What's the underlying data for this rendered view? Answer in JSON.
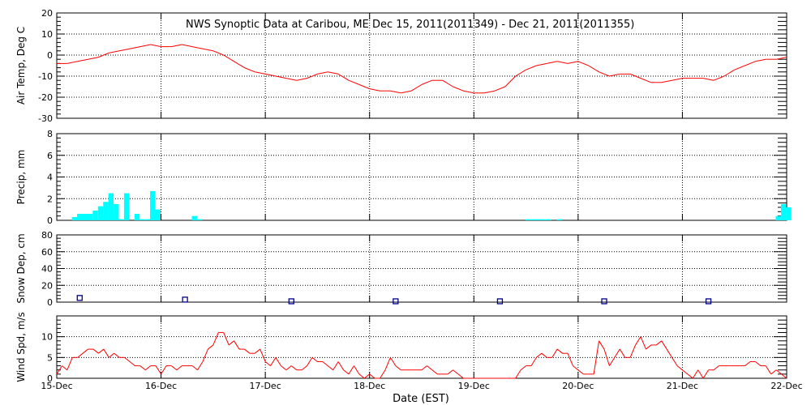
{
  "title": "NWS Synoptic Data at Caribou, ME   Dec 15, 2011(2011349) - Dec 21, 2011(2011355)",
  "x_axis": {
    "label": "Date (EST)",
    "ticks": [
      "15-Dec",
      "16-Dec",
      "17-Dec",
      "18-Dec",
      "19-Dec",
      "20-Dec",
      "21-Dec",
      "22-Dec"
    ]
  },
  "colors": {
    "line": "#ff0000",
    "precip": "#00ffff",
    "snow": "#00008b",
    "axis": "#000000"
  },
  "chart_data": [
    {
      "type": "line",
      "ylabel": "Air Temp, Deg C",
      "ylim": [
        -30,
        20
      ],
      "yticks": [
        -30,
        -20,
        -10,
        0,
        10,
        20
      ],
      "x_unit": "days since 15-Dec 00:00",
      "grid": true,
      "series": [
        {
          "x": [
            0,
            0.1,
            0.2,
            0.3,
            0.4,
            0.5,
            0.6,
            0.7,
            0.8,
            0.9,
            1.0,
            1.1,
            1.2,
            1.3,
            1.4,
            1.5,
            1.6,
            1.7,
            1.8,
            1.9,
            2.0,
            2.1,
            2.2,
            2.3,
            2.4,
            2.5,
            2.6,
            2.7,
            2.8,
            2.9,
            3.0,
            3.1,
            3.2,
            3.3,
            3.4,
            3.5,
            3.6,
            3.7,
            3.8,
            3.9,
            4.0,
            4.1,
            4.2,
            4.3,
            4.4,
            4.5,
            4.6,
            4.7,
            4.8,
            4.9,
            5.0,
            5.1,
            5.2,
            5.3,
            5.4,
            5.5,
            5.6,
            5.7,
            5.8,
            5.9,
            6.0,
            6.1,
            6.2,
            6.3,
            6.4,
            6.5,
            6.6,
            6.7,
            6.8,
            6.9,
            7.0
          ],
          "values": [
            -4,
            -4,
            -3,
            -2,
            -1,
            1,
            2,
            3,
            4,
            5,
            4,
            4,
            5,
            4,
            3,
            2,
            0,
            -3,
            -6,
            -8,
            -9,
            -10,
            -11,
            -12,
            -11,
            -9,
            -8,
            -9,
            -12,
            -14,
            -16,
            -17,
            -17,
            -18,
            -17,
            -14,
            -12,
            -12,
            -15,
            -17,
            -18,
            -18,
            -17,
            -15,
            -10,
            -7,
            -5,
            -4,
            -3,
            -4,
            -3,
            -5,
            -8,
            -10,
            -9,
            -9,
            -11,
            -13,
            -13,
            -12,
            -11,
            -11,
            -11,
            -12,
            -10,
            -7,
            -5,
            -3,
            -2,
            -2,
            -1
          ]
        }
      ]
    },
    {
      "type": "bar",
      "ylabel": "Precip, mm",
      "ylim": [
        0,
        8
      ],
      "yticks": [
        0,
        2,
        4,
        6,
        8
      ],
      "x_unit": "days since 15-Dec 00:00",
      "grid": true,
      "series": [
        {
          "x": [
            0.17,
            0.22,
            0.27,
            0.32,
            0.37,
            0.42,
            0.47,
            0.52,
            0.57,
            0.62,
            0.67,
            0.77,
            0.82,
            0.87,
            0.92,
            0.97,
            1.32,
            1.37,
            4.52,
            4.57,
            4.62,
            4.67,
            4.72,
            4.82,
            6.92,
            6.97,
            7.02
          ],
          "values": [
            0.3,
            0.6,
            0.6,
            0.6,
            0.9,
            1.3,
            1.7,
            2.5,
            1.5,
            0.1,
            2.5,
            0.6,
            0.1,
            0.1,
            2.7,
            1.0,
            0.4,
            0.1,
            0.1,
            0.1,
            0.1,
            0.1,
            0.1,
            0.1,
            0.4,
            1.5,
            1.2
          ]
        }
      ]
    },
    {
      "type": "scatter",
      "ylabel": "Snow Dep, cm",
      "ylim": [
        0,
        80
      ],
      "yticks": [
        0,
        20,
        40,
        60,
        80
      ],
      "x_unit": "days since 15-Dec 00:00",
      "grid": true,
      "series": [
        {
          "x": [
            0.22,
            1.23,
            2.25,
            3.25,
            4.25,
            5.25,
            6.25
          ],
          "values": [
            5,
            3,
            1,
            1,
            1,
            1,
            1
          ]
        }
      ]
    },
    {
      "type": "line",
      "ylabel": "Wind Spd, m/s",
      "ylim": [
        0,
        15
      ],
      "yticks": [
        0,
        5,
        10
      ],
      "x_unit": "days since 15-Dec 00:00",
      "grid": true,
      "series": [
        {
          "x": [
            0,
            0.05,
            0.1,
            0.15,
            0.2,
            0.25,
            0.3,
            0.35,
            0.4,
            0.45,
            0.5,
            0.55,
            0.6,
            0.65,
            0.7,
            0.75,
            0.8,
            0.85,
            0.9,
            0.95,
            1.0,
            1.05,
            1.1,
            1.15,
            1.2,
            1.25,
            1.3,
            1.35,
            1.4,
            1.45,
            1.5,
            1.55,
            1.6,
            1.65,
            1.7,
            1.75,
            1.8,
            1.85,
            1.9,
            1.95,
            2.0,
            2.05,
            2.1,
            2.15,
            2.2,
            2.25,
            2.3,
            2.35,
            2.4,
            2.45,
            2.5,
            2.55,
            2.6,
            2.65,
            2.7,
            2.75,
            2.8,
            2.85,
            2.9,
            2.95,
            3.0,
            3.05,
            3.1,
            3.15,
            3.2,
            3.25,
            3.3,
            3.35,
            3.4,
            3.45,
            3.5,
            3.55,
            3.6,
            3.65,
            3.7,
            3.75,
            3.8,
            3.85,
            3.9,
            3.95,
            4.0,
            4.05,
            4.1,
            4.15,
            4.2,
            4.25,
            4.3,
            4.35,
            4.4,
            4.45,
            4.5,
            4.55,
            4.6,
            4.65,
            4.7,
            4.75,
            4.8,
            4.85,
            4.9,
            4.95,
            5.0,
            5.05,
            5.1,
            5.15,
            5.2,
            5.25,
            5.3,
            5.35,
            5.4,
            5.45,
            5.5,
            5.55,
            5.6,
            5.65,
            5.7,
            5.75,
            5.8,
            5.85,
            5.9,
            5.95,
            6.0,
            6.05,
            6.1,
            6.15,
            6.2,
            6.25,
            6.3,
            6.35,
            6.4,
            6.45,
            6.5,
            6.55,
            6.6,
            6.65,
            6.7,
            6.75,
            6.8,
            6.85,
            6.9,
            6.95,
            7.0
          ],
          "values": [
            1,
            3,
            2,
            5,
            5,
            6,
            7,
            7,
            6,
            7,
            5,
            6,
            5,
            5,
            4,
            3,
            3,
            2,
            3,
            3,
            1,
            3,
            3,
            2,
            3,
            3,
            3,
            2,
            4,
            7,
            8,
            11,
            11,
            8,
            9,
            7,
            7,
            6,
            6,
            7,
            4,
            3,
            5,
            3,
            2,
            3,
            2,
            2,
            3,
            5,
            4,
            4,
            3,
            2,
            4,
            2,
            1,
            3,
            1,
            0,
            1,
            0,
            0,
            2,
            5,
            3,
            2,
            2,
            2,
            2,
            2,
            3,
            2,
            1,
            1,
            1,
            2,
            1,
            0,
            0,
            0,
            0,
            0,
            0,
            0,
            0,
            0,
            0,
            0,
            2,
            3,
            3,
            5,
            6,
            5,
            5,
            7,
            6,
            6,
            3,
            2,
            1,
            1,
            1,
            9,
            7,
            3,
            5,
            7,
            5,
            5,
            8,
            10,
            7,
            8,
            8,
            9,
            7,
            5,
            3,
            2,
            1,
            0,
            2,
            0,
            2,
            2,
            3,
            3,
            3,
            3,
            3,
            3,
            4,
            4,
            3,
            3,
            1,
            2,
            1,
            0
          ]
        }
      ]
    }
  ]
}
